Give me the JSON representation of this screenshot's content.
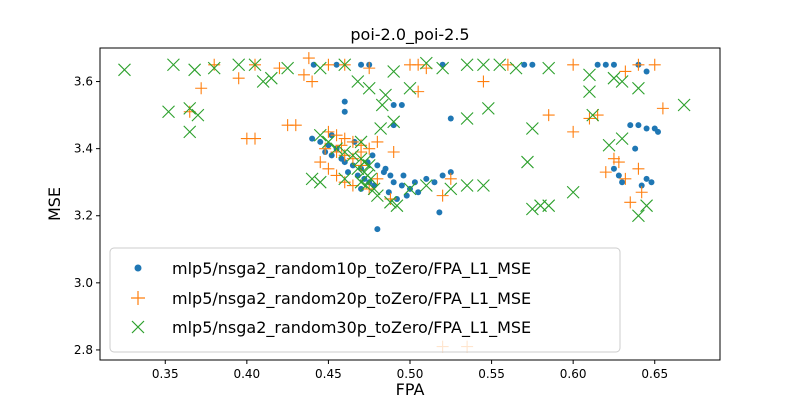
{
  "chart_data": {
    "type": "scatter",
    "title": "poi-2.0_poi-2.5",
    "xlabel": "FPA",
    "ylabel": "MSE",
    "xlim": [
      0.31,
      0.69
    ],
    "ylim": [
      2.77,
      3.7
    ],
    "xticks": [
      "0.35",
      "0.40",
      "0.45",
      "0.50",
      "0.55",
      "0.60",
      "0.65"
    ],
    "yticks": [
      "2.8",
      "3.0",
      "3.2",
      "3.4",
      "3.6"
    ],
    "grid": false,
    "legend_position": "lower-left",
    "series": [
      {
        "name": "mlp5/nsga2_random10p_toZero/FPA_L1_MSE",
        "marker": "dot",
        "color": "#1f77b4",
        "points": [
          [
            0.441,
            3.65
          ],
          [
            0.455,
            3.65
          ],
          [
            0.47,
            3.65
          ],
          [
            0.475,
            3.65
          ],
          [
            0.52,
            3.65
          ],
          [
            0.57,
            3.65
          ],
          [
            0.575,
            3.65
          ],
          [
            0.615,
            3.65
          ],
          [
            0.62,
            3.65
          ],
          [
            0.625,
            3.65
          ],
          [
            0.64,
            3.65
          ],
          [
            0.645,
            3.63
          ],
          [
            0.46,
            3.54
          ],
          [
            0.49,
            3.53
          ],
          [
            0.495,
            3.53
          ],
          [
            0.46,
            3.51
          ],
          [
            0.525,
            3.49
          ],
          [
            0.49,
            3.47
          ],
          [
            0.625,
            3.34
          ],
          [
            0.628,
            3.32
          ],
          [
            0.63,
            3.3
          ],
          [
            0.635,
            3.47
          ],
          [
            0.64,
            3.47
          ],
          [
            0.645,
            3.46
          ],
          [
            0.65,
            3.46
          ],
          [
            0.652,
            3.45
          ],
          [
            0.645,
            3.31
          ],
          [
            0.648,
            3.3
          ],
          [
            0.642,
            3.29
          ],
          [
            0.638,
            3.4
          ],
          [
            0.44,
            3.43
          ],
          [
            0.445,
            3.42
          ],
          [
            0.45,
            3.41
          ],
          [
            0.455,
            3.4
          ],
          [
            0.448,
            3.39
          ],
          [
            0.452,
            3.38
          ],
          [
            0.458,
            3.37
          ],
          [
            0.46,
            3.36
          ],
          [
            0.465,
            3.35
          ],
          [
            0.47,
            3.34
          ],
          [
            0.462,
            3.33
          ],
          [
            0.468,
            3.32
          ],
          [
            0.472,
            3.31
          ],
          [
            0.475,
            3.3
          ],
          [
            0.478,
            3.29
          ],
          [
            0.47,
            3.28
          ],
          [
            0.474,
            3.36
          ],
          [
            0.48,
            3.35
          ],
          [
            0.484,
            3.33
          ],
          [
            0.488,
            3.32
          ],
          [
            0.49,
            3.3
          ],
          [
            0.495,
            3.29
          ],
          [
            0.5,
            3.28
          ],
          [
            0.505,
            3.27
          ],
          [
            0.498,
            3.26
          ],
          [
            0.492,
            3.25
          ],
          [
            0.51,
            3.31
          ],
          [
            0.515,
            3.3
          ],
          [
            0.52,
            3.32
          ],
          [
            0.525,
            3.33
          ],
          [
            0.518,
            3.21
          ],
          [
            0.48,
            3.16
          ],
          [
            0.466,
            3.42
          ],
          [
            0.477,
            3.38
          ],
          [
            0.452,
            3.44
          ],
          [
            0.485,
            3.34
          ],
          [
            0.496,
            3.32
          ],
          [
            0.503,
            3.3
          ],
          [
            0.487,
            3.27
          ]
        ]
      },
      {
        "name": "mlp5/nsga2_random20p_toZero/FPA_L1_MSE",
        "marker": "plus",
        "color": "#ff7f0e",
        "points": [
          [
            0.38,
            3.65
          ],
          [
            0.405,
            3.65
          ],
          [
            0.42,
            3.64
          ],
          [
            0.435,
            3.62
          ],
          [
            0.438,
            3.67
          ],
          [
            0.45,
            3.65
          ],
          [
            0.46,
            3.65
          ],
          [
            0.475,
            3.64
          ],
          [
            0.5,
            3.65
          ],
          [
            0.505,
            3.65
          ],
          [
            0.51,
            3.64
          ],
          [
            0.56,
            3.65
          ],
          [
            0.6,
            3.65
          ],
          [
            0.632,
            3.63
          ],
          [
            0.64,
            3.65
          ],
          [
            0.65,
            3.65
          ],
          [
            0.395,
            3.61
          ],
          [
            0.372,
            3.58
          ],
          [
            0.44,
            3.6
          ],
          [
            0.545,
            3.6
          ],
          [
            0.505,
            3.57
          ],
          [
            0.365,
            3.51
          ],
          [
            0.425,
            3.47
          ],
          [
            0.43,
            3.47
          ],
          [
            0.45,
            3.45
          ],
          [
            0.455,
            3.44
          ],
          [
            0.46,
            3.43
          ],
          [
            0.465,
            3.42
          ],
          [
            0.47,
            3.41
          ],
          [
            0.475,
            3.4
          ],
          [
            0.455,
            3.39
          ],
          [
            0.46,
            3.38
          ],
          [
            0.465,
            3.37
          ],
          [
            0.47,
            3.35
          ],
          [
            0.445,
            3.36
          ],
          [
            0.45,
            3.34
          ],
          [
            0.455,
            3.32
          ],
          [
            0.46,
            3.3
          ],
          [
            0.465,
            3.29
          ],
          [
            0.475,
            3.28
          ],
          [
            0.48,
            3.31
          ],
          [
            0.48,
            3.42
          ],
          [
            0.49,
            3.39
          ],
          [
            0.4,
            3.43
          ],
          [
            0.405,
            3.43
          ],
          [
            0.585,
            3.5
          ],
          [
            0.6,
            3.45
          ],
          [
            0.61,
            3.49
          ],
          [
            0.615,
            3.5
          ],
          [
            0.625,
            3.37
          ],
          [
            0.628,
            3.36
          ],
          [
            0.62,
            3.33
          ],
          [
            0.64,
            3.34
          ],
          [
            0.642,
            3.27
          ],
          [
            0.635,
            3.24
          ],
          [
            0.632,
            3.31
          ],
          [
            0.655,
            3.52
          ],
          [
            0.52,
            3.26
          ],
          [
            0.525,
            3.31
          ],
          [
            0.52,
            2.81
          ],
          [
            0.535,
            2.81
          ],
          [
            0.488,
            3.25
          ],
          [
            0.47,
            3.39
          ],
          [
            0.458,
            3.41
          ],
          [
            0.448,
            3.4
          ]
        ]
      },
      {
        "name": "mlp5/nsga2_random30p_toZero/FPA_L1_MSE",
        "marker": "x",
        "color": "#2ca02c",
        "points": [
          [
            0.325,
            3.635
          ],
          [
            0.355,
            3.65
          ],
          [
            0.368,
            3.635
          ],
          [
            0.38,
            3.64
          ],
          [
            0.395,
            3.65
          ],
          [
            0.405,
            3.65
          ],
          [
            0.41,
            3.6
          ],
          [
            0.415,
            3.61
          ],
          [
            0.425,
            3.64
          ],
          [
            0.445,
            3.64
          ],
          [
            0.46,
            3.65
          ],
          [
            0.468,
            3.6
          ],
          [
            0.49,
            3.63
          ],
          [
            0.51,
            3.655
          ],
          [
            0.52,
            3.64
          ],
          [
            0.535,
            3.65
          ],
          [
            0.545,
            3.65
          ],
          [
            0.555,
            3.65
          ],
          [
            0.565,
            3.64
          ],
          [
            0.585,
            3.64
          ],
          [
            0.61,
            3.62
          ],
          [
            0.625,
            3.61
          ],
          [
            0.63,
            3.6
          ],
          [
            0.64,
            3.58
          ],
          [
            0.61,
            3.57
          ],
          [
            0.475,
            3.58
          ],
          [
            0.485,
            3.56
          ],
          [
            0.5,
            3.58
          ],
          [
            0.483,
            3.53
          ],
          [
            0.352,
            3.51
          ],
          [
            0.365,
            3.52
          ],
          [
            0.37,
            3.5
          ],
          [
            0.365,
            3.45
          ],
          [
            0.548,
            3.52
          ],
          [
            0.535,
            3.49
          ],
          [
            0.575,
            3.46
          ],
          [
            0.612,
            3.5
          ],
          [
            0.668,
            3.53
          ],
          [
            0.63,
            3.43
          ],
          [
            0.622,
            3.41
          ],
          [
            0.445,
            3.44
          ],
          [
            0.45,
            3.42
          ],
          [
            0.455,
            3.4
          ],
          [
            0.46,
            3.39
          ],
          [
            0.465,
            3.38
          ],
          [
            0.47,
            3.37
          ],
          [
            0.472,
            3.36
          ],
          [
            0.475,
            3.35
          ],
          [
            0.468,
            3.34
          ],
          [
            0.472,
            3.33
          ],
          [
            0.474,
            3.32
          ],
          [
            0.476,
            3.31
          ],
          [
            0.47,
            3.3
          ],
          [
            0.473,
            3.29
          ],
          [
            0.478,
            3.28
          ],
          [
            0.44,
            3.31
          ],
          [
            0.445,
            3.3
          ],
          [
            0.46,
            3.31
          ],
          [
            0.48,
            3.26
          ],
          [
            0.488,
            3.24
          ],
          [
            0.492,
            3.23
          ],
          [
            0.5,
            3.28
          ],
          [
            0.51,
            3.29
          ],
          [
            0.525,
            3.28
          ],
          [
            0.535,
            3.29
          ],
          [
            0.545,
            3.29
          ],
          [
            0.572,
            3.36
          ],
          [
            0.575,
            3.22
          ],
          [
            0.58,
            3.23
          ],
          [
            0.585,
            3.23
          ],
          [
            0.6,
            3.27
          ],
          [
            0.64,
            3.2
          ],
          [
            0.645,
            3.23
          ],
          [
            0.482,
            3.46
          ],
          [
            0.47,
            3.42
          ],
          [
            0.49,
            3.48
          ]
        ]
      }
    ]
  }
}
